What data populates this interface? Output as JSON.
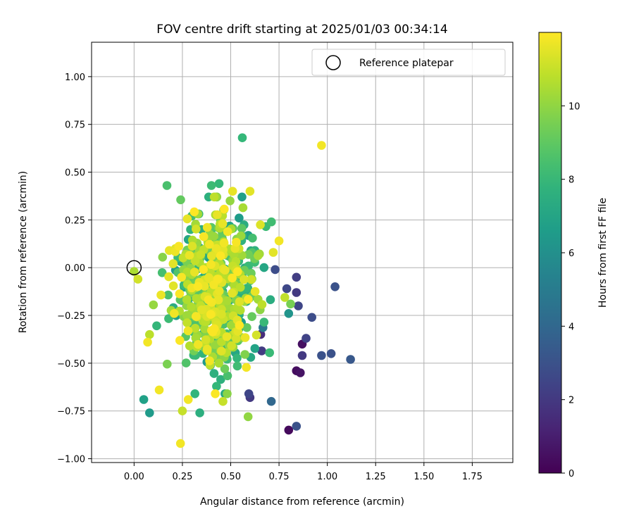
{
  "chart_data": {
    "type": "scatter",
    "title": "FOV centre drift starting at 2025/01/03 00:34:14",
    "xlabel": "Angular distance from reference (arcmin)",
    "ylabel": "Rotation from reference (arcmin)",
    "xlim": [
      -0.22,
      1.96
    ],
    "ylim": [
      -1.02,
      1.18
    ],
    "x_ticks": [
      0.0,
      0.25,
      0.5,
      0.75,
      1.0,
      1.25,
      1.5,
      1.75
    ],
    "x_tick_labels": [
      "0.00",
      "0.25",
      "0.50",
      "0.75",
      "1.00",
      "1.25",
      "1.50",
      "1.75"
    ],
    "y_ticks": [
      -1.0,
      -0.75,
      -0.5,
      -0.25,
      0.0,
      0.25,
      0.5,
      0.75,
      1.0
    ],
    "y_tick_labels": [
      "−1.00",
      "−0.75",
      "−0.50",
      "−0.25",
      "0.00",
      "0.25",
      "0.50",
      "0.75",
      "1.00"
    ],
    "grid": true,
    "legend": {
      "placement": "top-right",
      "entries": [
        {
          "label": "Reference platepar",
          "marker": "open-circle"
        }
      ]
    },
    "reference_point": {
      "x": 0.0,
      "y": 0.0
    },
    "colorbar": {
      "label": "Hours from first FF file",
      "colormap": "viridis",
      "range": [
        0,
        12
      ],
      "ticks": [
        0,
        2,
        4,
        6,
        8,
        10
      ],
      "tick_labels": [
        "0",
        "2",
        "4",
        "6",
        "8",
        "10"
      ]
    },
    "outlier_points": [
      {
        "x": 0.56,
        "y": 0.68,
        "hours": 8.0
      },
      {
        "x": 0.97,
        "y": 0.64,
        "hours": 11.8
      },
      {
        "x": 0.24,
        "y": -0.92,
        "hours": 11.8
      },
      {
        "x": 0.8,
        "y": -0.85,
        "hours": 0.3
      },
      {
        "x": 0.84,
        "y": -0.83,
        "hours": 3.0
      },
      {
        "x": 1.12,
        "y": -0.48,
        "hours": 3.3
      },
      {
        "x": 1.04,
        "y": -0.1,
        "hours": 3.0
      },
      {
        "x": 0.97,
        "y": -0.46,
        "hours": 3.0
      },
      {
        "x": 1.02,
        "y": -0.45,
        "hours": 3.0
      },
      {
        "x": 0.92,
        "y": -0.26,
        "hours": 2.8
      },
      {
        "x": 0.89,
        "y": -0.37,
        "hours": 2.4
      },
      {
        "x": 0.87,
        "y": -0.46,
        "hours": 2.0
      },
      {
        "x": 0.87,
        "y": -0.4,
        "hours": 0.5
      },
      {
        "x": 0.84,
        "y": -0.05,
        "hours": 2.2
      },
      {
        "x": 0.84,
        "y": -0.13,
        "hours": 2.0
      },
      {
        "x": 0.85,
        "y": -0.2,
        "hours": 2.5
      },
      {
        "x": 0.84,
        "y": -0.54,
        "hours": 0.4
      },
      {
        "x": 0.86,
        "y": -0.55,
        "hours": 0.6
      },
      {
        "x": 0.8,
        "y": -0.24,
        "hours": 6.2
      },
      {
        "x": 0.81,
        "y": -0.19,
        "hours": 9.5
      },
      {
        "x": 0.79,
        "y": -0.11,
        "hours": 2.6
      },
      {
        "x": 0.71,
        "y": -0.7,
        "hours": 4.0
      },
      {
        "x": 0.6,
        "y": -0.68,
        "hours": 2.0
      },
      {
        "x": 0.59,
        "y": -0.78,
        "hours": 10.0
      },
      {
        "x": 0.05,
        "y": -0.69,
        "hours": 6.8
      },
      {
        "x": 0.08,
        "y": -0.76,
        "hours": 6.5
      },
      {
        "x": 0.17,
        "y": 0.43,
        "hours": 8.5
      },
      {
        "x": 0.6,
        "y": 0.4,
        "hours": 11.5
      },
      {
        "x": 0.51,
        "y": 0.4,
        "hours": 11.6
      },
      {
        "x": 0.44,
        "y": 0.44,
        "hours": 8.0
      },
      {
        "x": 0.4,
        "y": 0.43,
        "hours": 8.2
      },
      {
        "x": 0.75,
        "y": 0.14,
        "hours": 11.8
      },
      {
        "x": 0.72,
        "y": 0.08,
        "hours": 11.5
      },
      {
        "x": 0.73,
        "y": -0.01,
        "hours": 2.8
      },
      {
        "x": 0.0,
        "y": -0.02,
        "hours": 10.5
      },
      {
        "x": 0.02,
        "y": -0.06,
        "hours": 11.2
      },
      {
        "x": 0.07,
        "y": -0.39,
        "hours": 11.8
      },
      {
        "x": 0.08,
        "y": -0.35,
        "hours": 10.8
      },
      {
        "x": 0.13,
        "y": -0.64,
        "hours": 11.8
      },
      {
        "x": 0.25,
        "y": -0.75,
        "hours": 11.0
      },
      {
        "x": 0.34,
        "y": -0.76,
        "hours": 7.5
      },
      {
        "x": 0.28,
        "y": -0.69,
        "hours": 11.8
      },
      {
        "x": 0.46,
        "y": -0.7,
        "hours": 11.0
      }
    ],
    "cluster": {
      "count": 640,
      "x_mean": 0.42,
      "x_sd": 0.11,
      "y_mean": -0.12,
      "y_sd": 0.2,
      "x_range": [
        0.1,
        0.78
      ],
      "y_range": [
        -0.66,
        0.37
      ]
    }
  }
}
